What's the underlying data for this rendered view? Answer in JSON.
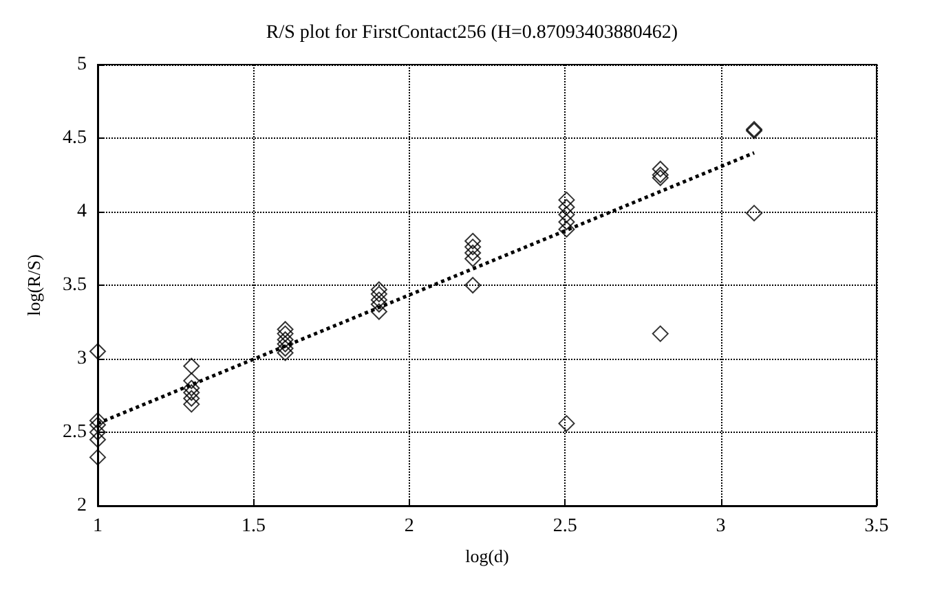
{
  "chart_data": {
    "type": "scatter",
    "title": "R/S plot for FirstContact256 (H=0.87093403880462)",
    "xlabel": "log(d)",
    "ylabel": "log(R/S)",
    "xlim": [
      1,
      3.5
    ],
    "xticks": [
      1,
      1.5,
      2,
      2.5,
      3,
      3.5
    ],
    "ylim": [
      2,
      5
    ],
    "yticks": [
      2,
      2.5,
      3,
      3.5,
      4,
      4.5,
      5
    ],
    "grid": true,
    "series": [
      {
        "color": "#000000",
        "marker": "diamond",
        "x": [
          1,
          1,
          1,
          1,
          1,
          1,
          1.301,
          1.301,
          1.301,
          1.301,
          1.301,
          1.301,
          1.602,
          1.602,
          1.602,
          1.602,
          1.602,
          1.602,
          1.903,
          1.903,
          1.903,
          1.903,
          1.903,
          2.204,
          2.204,
          2.204,
          2.204,
          2.204,
          2.505,
          2.505,
          2.505,
          2.505,
          2.505,
          2.505,
          2.806,
          2.806,
          2.806,
          2.806,
          3.107,
          3.107,
          3.107
        ],
        "values": [
          3.05,
          2.58,
          2.55,
          2.5,
          2.45,
          2.33,
          2.95,
          2.85,
          2.8,
          2.77,
          2.73,
          2.69,
          3.2,
          3.17,
          3.13,
          3.1,
          3.07,
          3.04,
          3.47,
          3.44,
          3.4,
          3.37,
          3.32,
          3.8,
          3.76,
          3.72,
          3.68,
          3.5,
          4.08,
          4.03,
          3.98,
          3.93,
          3.88,
          2.56,
          4.29,
          4.25,
          4.23,
          3.17,
          4.56,
          4.55,
          3.99
        ]
      },
      {
        "type": "line",
        "color": "#000000",
        "line_style": "dotted",
        "marker": "none",
        "x": [
          1,
          3.107
        ],
        "values": [
          2.56,
          4.4
        ]
      }
    ]
  }
}
